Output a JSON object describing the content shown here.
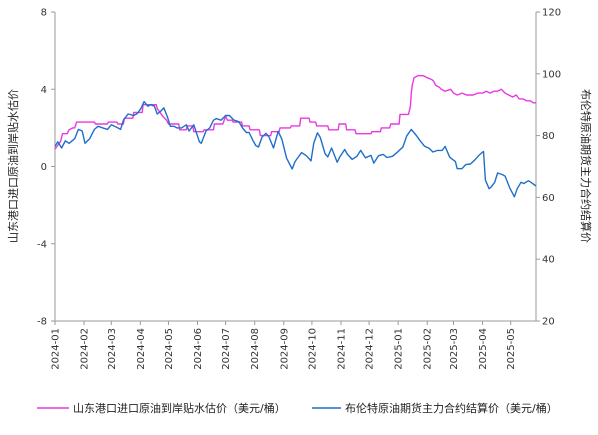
{
  "chart_data": {
    "type": "line",
    "ylabel_left": "山东港口进口原油到岸贴水估价",
    "ylabel_right": "布伦特原油期货主力合约结算价",
    "y_left_range": [
      -8,
      8
    ],
    "y_left_ticks": [
      "8",
      "4",
      "0",
      "-4",
      "-8"
    ],
    "y_right_range": [
      20,
      120
    ],
    "y_right_ticks": [
      "120",
      "100",
      "80",
      "60",
      "40",
      "20"
    ],
    "x_range": [
      "2024-01-01",
      "2025-05-28"
    ],
    "x_ticks": [
      "2024-01",
      "2024-02",
      "2024-03",
      "2024-04",
      "2024-05",
      "2024-06",
      "2024-07",
      "2024-08",
      "2024-09",
      "2024-10",
      "2024-11",
      "2024-12",
      "2025-01",
      "2025-02",
      "2025-03",
      "2025-04",
      "2025-05"
    ],
    "grid": false,
    "legend_position": "bottom",
    "series": [
      {
        "name": "山东港口进口原油到岸贴水估价（美元/桶）",
        "axis": "left",
        "color": "#e839e0",
        "points": [
          [
            "2024-01-01",
            0.9
          ],
          [
            "2024-01-07",
            1.3
          ],
          [
            "2024-01-09",
            1.7
          ],
          [
            "2024-01-14",
            1.7
          ],
          [
            "2024-01-16",
            1.9
          ],
          [
            "2024-01-20",
            2.0
          ],
          [
            "2024-01-22",
            2.0
          ],
          [
            "2024-01-24",
            2.3
          ],
          [
            "2024-02-12",
            2.3
          ],
          [
            "2024-02-13",
            2.2
          ],
          [
            "2024-02-26",
            2.2
          ],
          [
            "2024-02-27",
            2.3
          ],
          [
            "2024-03-07",
            2.3
          ],
          [
            "2024-03-08",
            2.2
          ],
          [
            "2024-03-14",
            2.2
          ],
          [
            "2024-03-15",
            2.5
          ],
          [
            "2024-03-24",
            2.5
          ],
          [
            "2024-03-25",
            2.8
          ],
          [
            "2024-04-03",
            2.8
          ],
          [
            "2024-04-04",
            3.2
          ],
          [
            "2024-04-18",
            3.2
          ],
          [
            "2024-04-19",
            3.0
          ],
          [
            "2024-04-22",
            2.8
          ],
          [
            "2024-04-25",
            2.6
          ],
          [
            "2024-04-29",
            2.4
          ],
          [
            "2024-05-01",
            2.2
          ],
          [
            "2024-05-12",
            2.2
          ],
          [
            "2024-05-13",
            1.9
          ],
          [
            "2024-05-20",
            1.9
          ],
          [
            "2024-05-21",
            2.1
          ],
          [
            "2024-05-27",
            2.1
          ],
          [
            "2024-05-28",
            1.8
          ],
          [
            "2024-06-07",
            1.8
          ],
          [
            "2024-06-08",
            1.9
          ],
          [
            "2024-06-18",
            1.9
          ],
          [
            "2024-06-19",
            2.2
          ],
          [
            "2024-06-28",
            2.2
          ],
          [
            "2024-07-01",
            2.6
          ],
          [
            "2024-07-03",
            2.4
          ],
          [
            "2024-07-08",
            2.4
          ],
          [
            "2024-07-09",
            2.3
          ],
          [
            "2024-07-18",
            2.3
          ],
          [
            "2024-07-19",
            2.1
          ],
          [
            "2024-07-26",
            2.1
          ],
          [
            "2024-07-27",
            1.9
          ],
          [
            "2024-08-06",
            1.9
          ],
          [
            "2024-08-07",
            1.6
          ],
          [
            "2024-08-18",
            1.6
          ],
          [
            "2024-08-19",
            1.8
          ],
          [
            "2024-08-27",
            1.8
          ],
          [
            "2024-08-28",
            2.0
          ],
          [
            "2024-09-08",
            2.0
          ],
          [
            "2024-09-09",
            2.1
          ],
          [
            "2024-09-18",
            2.1
          ],
          [
            "2024-09-19",
            2.5
          ],
          [
            "2024-09-28",
            2.5
          ],
          [
            "2024-09-29",
            2.3
          ],
          [
            "2024-10-05",
            2.3
          ],
          [
            "2024-10-06",
            2.1
          ],
          [
            "2024-10-18",
            2.1
          ],
          [
            "2024-10-19",
            1.9
          ],
          [
            "2024-10-29",
            1.9
          ],
          [
            "2024-10-30",
            2.2
          ],
          [
            "2024-11-06",
            2.2
          ],
          [
            "2024-11-07",
            1.9
          ],
          [
            "2024-11-16",
            1.9
          ],
          [
            "2024-11-17",
            1.7
          ],
          [
            "2024-12-03",
            1.7
          ],
          [
            "2024-12-04",
            1.8
          ],
          [
            "2024-12-13",
            1.8
          ],
          [
            "2024-12-14",
            2.0
          ],
          [
            "2024-12-23",
            2.0
          ],
          [
            "2024-12-24",
            2.2
          ],
          [
            "2025-01-02",
            2.2
          ],
          [
            "2025-01-03",
            2.7
          ],
          [
            "2025-01-12",
            2.7
          ],
          [
            "2025-01-13",
            2.9
          ],
          [
            "2025-01-14",
            3.1
          ],
          [
            "2025-01-15",
            3.8
          ],
          [
            "2025-01-16",
            4.2
          ],
          [
            "2025-01-18",
            4.6
          ],
          [
            "2025-01-22",
            4.7
          ],
          [
            "2025-01-28",
            4.7
          ],
          [
            "2025-02-01",
            4.6
          ],
          [
            "2025-02-06",
            4.5
          ],
          [
            "2025-02-08",
            4.4
          ],
          [
            "2025-02-10",
            4.2
          ],
          [
            "2025-02-14",
            4.1
          ],
          [
            "2025-02-16",
            4.0
          ],
          [
            "2025-02-20",
            3.9
          ],
          [
            "2025-02-26",
            4.0
          ],
          [
            "2025-03-01",
            3.8
          ],
          [
            "2025-03-05",
            3.7
          ],
          [
            "2025-03-10",
            3.8
          ],
          [
            "2025-03-15",
            3.7
          ],
          [
            "2025-03-22",
            3.7
          ],
          [
            "2025-03-27",
            3.8
          ],
          [
            "2025-04-01",
            3.8
          ],
          [
            "2025-04-05",
            3.9
          ],
          [
            "2025-04-09",
            3.8
          ],
          [
            "2025-04-13",
            3.9
          ],
          [
            "2025-04-17",
            3.9
          ],
          [
            "2025-04-21",
            4.0
          ],
          [
            "2025-04-25",
            3.8
          ],
          [
            "2025-04-29",
            3.7
          ],
          [
            "2025-05-03",
            3.6
          ],
          [
            "2025-05-07",
            3.7
          ],
          [
            "2025-05-10",
            3.5
          ],
          [
            "2025-05-14",
            3.5
          ],
          [
            "2025-05-18",
            3.4
          ],
          [
            "2025-05-22",
            3.4
          ],
          [
            "2025-05-25",
            3.3
          ],
          [
            "2025-05-28",
            3.3
          ]
        ]
      },
      {
        "name": "布伦特原油期货主力合约结算价（美元/桶）",
        "axis": "right",
        "color": "#1f6fc9",
        "points": [
          [
            "2024-01-01",
            76.5
          ],
          [
            "2024-01-04",
            78.0
          ],
          [
            "2024-01-08",
            76.0
          ],
          [
            "2024-01-12",
            78.3
          ],
          [
            "2024-01-16",
            77.5
          ],
          [
            "2024-01-22",
            79.0
          ],
          [
            "2024-01-26",
            82.0
          ],
          [
            "2024-01-30",
            81.5
          ],
          [
            "2024-02-02",
            77.5
          ],
          [
            "2024-02-07",
            79.0
          ],
          [
            "2024-02-12",
            82.0
          ],
          [
            "2024-02-16",
            83.0
          ],
          [
            "2024-02-21",
            82.5
          ],
          [
            "2024-02-26",
            82.0
          ],
          [
            "2024-03-01",
            83.5
          ],
          [
            "2024-03-06",
            82.8
          ],
          [
            "2024-03-11",
            82.0
          ],
          [
            "2024-03-14",
            85.0
          ],
          [
            "2024-03-19",
            87.0
          ],
          [
            "2024-03-25",
            86.5
          ],
          [
            "2024-03-29",
            87.2
          ],
          [
            "2024-04-02",
            89.0
          ],
          [
            "2024-04-05",
            91.0
          ],
          [
            "2024-04-09",
            89.5
          ],
          [
            "2024-04-12",
            90.0
          ],
          [
            "2024-04-16",
            89.5
          ],
          [
            "2024-04-19",
            87.0
          ],
          [
            "2024-04-23",
            88.0
          ],
          [
            "2024-04-26",
            89.0
          ],
          [
            "2024-04-30",
            86.0
          ],
          [
            "2024-05-03",
            83.0
          ],
          [
            "2024-05-07",
            83.0
          ],
          [
            "2024-05-10",
            82.5
          ],
          [
            "2024-05-15",
            82.5
          ],
          [
            "2024-05-20",
            83.5
          ],
          [
            "2024-05-23",
            81.5
          ],
          [
            "2024-05-28",
            83.5
          ],
          [
            "2024-06-03",
            78.0
          ],
          [
            "2024-06-05",
            77.5
          ],
          [
            "2024-06-10",
            81.5
          ],
          [
            "2024-06-14",
            82.5
          ],
          [
            "2024-06-18",
            85.0
          ],
          [
            "2024-06-21",
            85.5
          ],
          [
            "2024-06-26",
            85.0
          ],
          [
            "2024-07-01",
            86.5
          ],
          [
            "2024-07-05",
            86.5
          ],
          [
            "2024-07-10",
            85.0
          ],
          [
            "2024-07-15",
            84.5
          ],
          [
            "2024-07-19",
            82.5
          ],
          [
            "2024-07-23",
            81.0
          ],
          [
            "2024-07-26",
            81.0
          ],
          [
            "2024-07-30",
            78.5
          ],
          [
            "2024-08-02",
            76.8
          ],
          [
            "2024-08-05",
            76.3
          ],
          [
            "2024-08-09",
            79.6
          ],
          [
            "2024-08-13",
            80.7
          ],
          [
            "2024-08-16",
            79.7
          ],
          [
            "2024-08-21",
            76.0
          ],
          [
            "2024-08-26",
            81.4
          ],
          [
            "2024-08-30",
            78.8
          ],
          [
            "2024-09-04",
            72.7
          ],
          [
            "2024-09-10",
            69.2
          ],
          [
            "2024-09-13",
            71.6
          ],
          [
            "2024-09-18",
            73.7
          ],
          [
            "2024-09-20",
            74.5
          ],
          [
            "2024-09-25",
            73.5
          ],
          [
            "2024-09-30",
            71.8
          ],
          [
            "2024-10-03",
            77.6
          ],
          [
            "2024-10-07",
            80.9
          ],
          [
            "2024-10-10",
            79.4
          ],
          [
            "2024-10-15",
            74.2
          ],
          [
            "2024-10-18",
            73.1
          ],
          [
            "2024-10-22",
            76.0
          ],
          [
            "2024-10-28",
            71.4
          ],
          [
            "2024-10-31",
            73.2
          ],
          [
            "2024-11-05",
            75.5
          ],
          [
            "2024-11-08",
            73.9
          ],
          [
            "2024-11-13",
            72.3
          ],
          [
            "2024-11-18",
            73.3
          ],
          [
            "2024-11-22",
            75.2
          ],
          [
            "2024-11-27",
            72.8
          ],
          [
            "2024-12-03",
            73.6
          ],
          [
            "2024-12-06",
            71.1
          ],
          [
            "2024-12-11",
            73.5
          ],
          [
            "2024-12-16",
            73.9
          ],
          [
            "2024-12-20",
            72.9
          ],
          [
            "2024-12-26",
            73.3
          ],
          [
            "2024-12-31",
            74.6
          ],
          [
            "2025-01-06",
            76.3
          ],
          [
            "2025-01-10",
            79.8
          ],
          [
            "2025-01-15",
            82.0
          ],
          [
            "2025-01-20",
            80.2
          ],
          [
            "2025-01-24",
            78.5
          ],
          [
            "2025-01-29",
            76.6
          ],
          [
            "2025-02-03",
            75.9
          ],
          [
            "2025-02-07",
            74.7
          ],
          [
            "2025-02-12",
            75.2
          ],
          [
            "2025-02-17",
            75.2
          ],
          [
            "2025-02-20",
            76.5
          ],
          [
            "2025-02-25",
            73.0
          ],
          [
            "2025-03-03",
            71.6
          ],
          [
            "2025-03-05",
            69.3
          ],
          [
            "2025-03-10",
            69.3
          ],
          [
            "2025-03-14",
            70.6
          ],
          [
            "2025-03-19",
            70.8
          ],
          [
            "2025-03-24",
            72.2
          ],
          [
            "2025-03-28",
            73.6
          ],
          [
            "2025-04-02",
            74.9
          ],
          [
            "2025-04-04",
            65.6
          ],
          [
            "2025-04-08",
            62.8
          ],
          [
            "2025-04-10",
            63.3
          ],
          [
            "2025-04-14",
            64.9
          ],
          [
            "2025-04-17",
            67.9
          ],
          [
            "2025-04-22",
            67.4
          ],
          [
            "2025-04-25",
            66.9
          ],
          [
            "2025-04-30",
            63.1
          ],
          [
            "2025-05-05",
            60.2
          ],
          [
            "2025-05-08",
            62.8
          ],
          [
            "2025-05-12",
            64.9
          ],
          [
            "2025-05-15",
            64.5
          ],
          [
            "2025-05-20",
            65.4
          ],
          [
            "2025-05-23",
            64.8
          ],
          [
            "2025-05-28",
            63.7
          ]
        ]
      }
    ]
  }
}
